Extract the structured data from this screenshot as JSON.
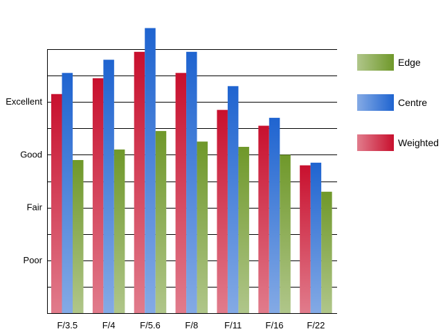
{
  "chart_data": {
    "type": "bar",
    "categories": [
      "F/3.5",
      "F/4",
      "F/5.6",
      "F/8",
      "F/11",
      "F/16",
      "F/22"
    ],
    "series": [
      {
        "name": "Weighted",
        "color": "#c8102e",
        "values": [
          8.3,
          8.9,
          9.9,
          9.1,
          7.7,
          7.1,
          5.6
        ]
      },
      {
        "name": "Centre",
        "color": "#1f64d0",
        "values": [
          9.1,
          9.6,
          10.8,
          9.9,
          8.6,
          7.4,
          5.7
        ]
      },
      {
        "name": "Edge",
        "color": "#6f982a",
        "values": [
          5.8,
          6.2,
          6.9,
          6.5,
          6.3,
          6.0,
          4.6
        ]
      }
    ],
    "yticks": [
      {
        "value": 2,
        "label": "Poor"
      },
      {
        "value": 4,
        "label": "Fair"
      },
      {
        "value": 6,
        "label": "Good"
      },
      {
        "value": 8,
        "label": "Excellent"
      }
    ],
    "ylim": [
      0,
      10
    ],
    "grid": true,
    "legend_position": "right",
    "legend_order": [
      "Edge",
      "Centre",
      "Weighted"
    ]
  }
}
